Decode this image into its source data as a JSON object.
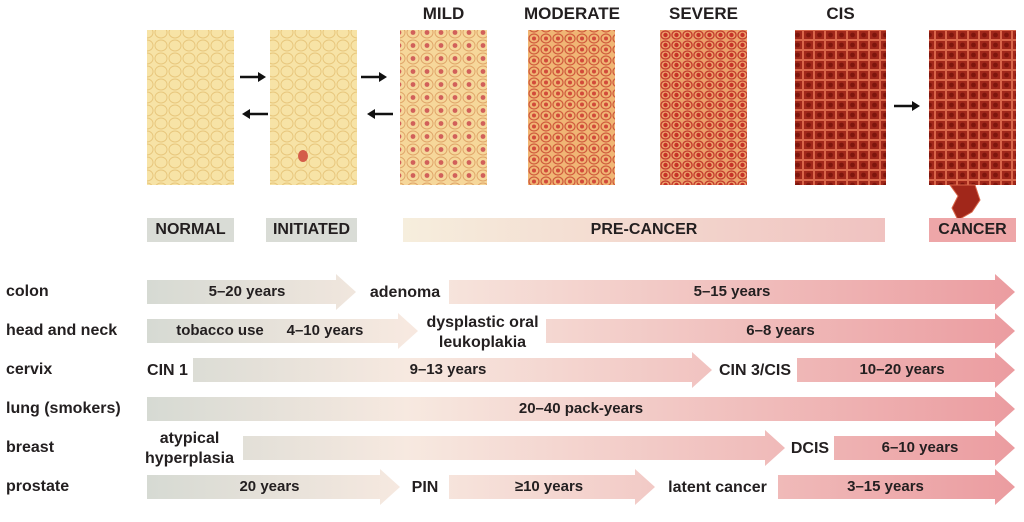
{
  "stages": {
    "mild": "MILD",
    "moderate": "MODERATE",
    "severe": "SEVERE",
    "cis": "CIS"
  },
  "bands": {
    "normal": "NORMAL",
    "initiated": "INITIATED",
    "pre_cancer": "PRE-CANCER",
    "cancer": "CANCER"
  },
  "rows": {
    "colon": {
      "label": "colon",
      "seg1": "5–20 years",
      "stage1": "adenoma",
      "seg2": "5–15 years"
    },
    "head_neck": {
      "label": "head and neck",
      "pre": "tobacco use",
      "seg1": "4–10 years",
      "stage1_line1": "dysplastic oral",
      "stage1_line2": "leukoplakia",
      "seg2": "6–8 years"
    },
    "cervix": {
      "label": "cervix",
      "stage0": "CIN 1",
      "seg1": "9–13 years",
      "stage1": "CIN 3/CIS",
      "seg2": "10–20 years"
    },
    "lung": {
      "label": "lung (smokers)",
      "seg1": "20–40 pack-years"
    },
    "breast": {
      "label": "breast",
      "stage0_line1": "atypical",
      "stage0_line2": "hyperplasia",
      "stage1": "DCIS",
      "seg2": "6–10 years"
    },
    "prostate": {
      "label": "prostate",
      "seg1": "20 years",
      "stage1": "PIN",
      "seg2": "≥10 years",
      "stage2": "latent cancer",
      "seg3": "3–15 years"
    }
  },
  "colors": {
    "gray_arrow": "#d9dcd6",
    "pink_arrow": "#eea6a8",
    "normal_tissue": "#f7e3a6",
    "cis_tissue": "#9e1f10"
  }
}
